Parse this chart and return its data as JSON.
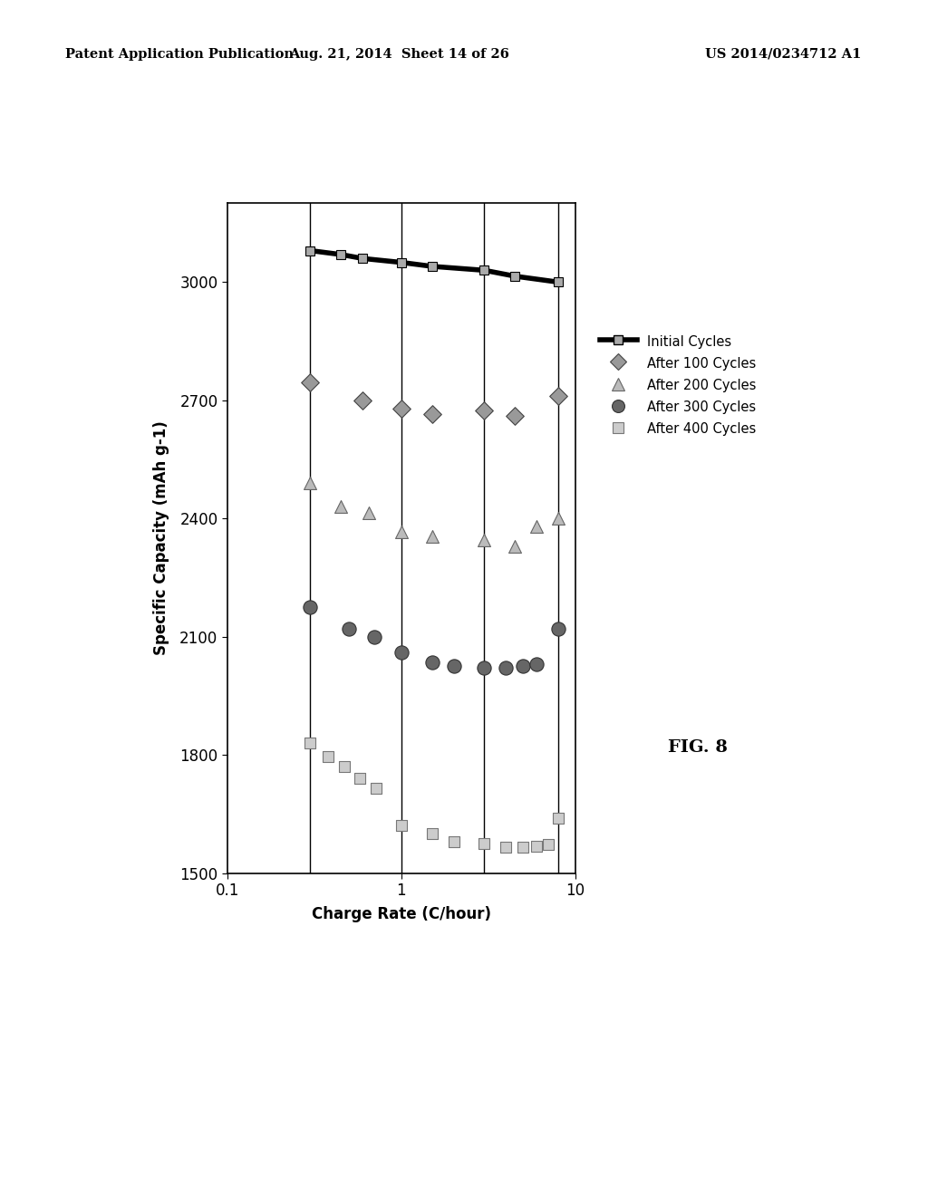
{
  "header_left": "Patent Application Publication",
  "header_mid": "Aug. 21, 2014  Sheet 14 of 26",
  "header_right": "US 2014/0234712 A1",
  "xlabel": "Charge Rate (C/hour)",
  "ylabel": "Specific Capacity (mAh g-1)",
  "fig_label": "FIG. 8",
  "xlim": [
    0.1,
    10
  ],
  "ylim": [
    1500,
    3200
  ],
  "yticks": [
    1500,
    1800,
    2100,
    2400,
    2700,
    3000
  ],
  "vlines": [
    0.3,
    1.0,
    3.0,
    8.0
  ],
  "initial_x": [
    0.3,
    0.45,
    0.6,
    1.0,
    1.5,
    3.0,
    4.5,
    8.0
  ],
  "initial_y": [
    3080,
    3070,
    3060,
    3050,
    3040,
    3030,
    3015,
    3000
  ],
  "c100_x": [
    0.3,
    0.6,
    1.0,
    1.5,
    3.0,
    4.5,
    8.0
  ],
  "c100_y": [
    2745,
    2700,
    2680,
    2665,
    2675,
    2660,
    2710
  ],
  "c200_x": [
    0.3,
    0.45,
    0.65,
    1.0,
    1.5,
    3.0,
    4.5,
    6.0,
    8.0
  ],
  "c200_y": [
    2490,
    2430,
    2415,
    2365,
    2355,
    2345,
    2330,
    2380,
    2400
  ],
  "c300_x": [
    0.3,
    0.5,
    0.7,
    1.0,
    1.5,
    2.0,
    3.0,
    4.0,
    5.0,
    6.0,
    8.0
  ],
  "c300_y": [
    2175,
    2120,
    2100,
    2060,
    2035,
    2025,
    2020,
    2020,
    2025,
    2030,
    2120
  ],
  "c400_x": [
    0.3,
    0.38,
    0.47,
    0.58,
    0.72,
    1.0,
    1.5,
    2.0,
    3.0,
    4.0,
    5.0,
    6.0,
    7.0,
    8.0
  ],
  "c400_y": [
    1830,
    1795,
    1770,
    1740,
    1715,
    1620,
    1600,
    1580,
    1575,
    1565,
    1565,
    1568,
    1572,
    1640
  ],
  "background_color": "#ffffff"
}
